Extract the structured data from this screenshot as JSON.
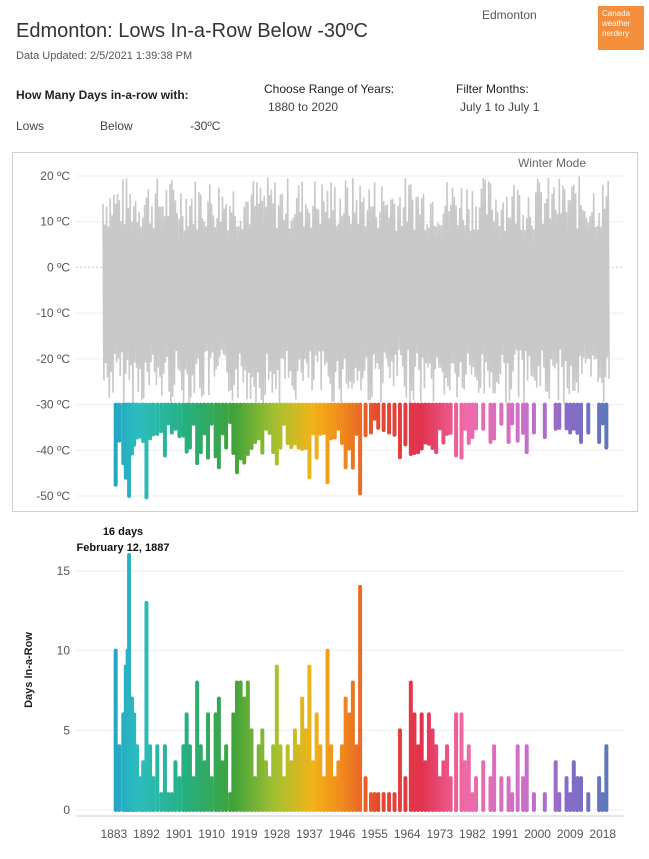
{
  "header": {
    "title": "Edmonton: Lows In-a-Row Below -30ºC",
    "updated": "Data Updated: 2/5/2021 1:39:38 PM",
    "city": "Edmonton",
    "logo_lines": [
      "Canada",
      "weather",
      "nerdery"
    ],
    "logo_color": "#f28e3c"
  },
  "filters": {
    "days_label": "How Many Days in-a-row with:",
    "measure": "Lows",
    "comparison": "Below",
    "threshold": "-30ºC",
    "range_label": "Choose Range of Years:",
    "range_value": "1880 to 2020",
    "months_label": "Filter Months:",
    "months_value": "July 1 to July 1"
  },
  "chart_data": [
    {
      "type": "line",
      "annotation": "Winter Mode",
      "y_ticks": [
        "20 ºC",
        "10 ºC",
        "0 ºC",
        "-10 ºC",
        "-20 ºC",
        "-30 ºC",
        "-40 ºC",
        "-50 ºC"
      ],
      "ylim": [
        -50,
        20
      ],
      "xlim": [
        1880,
        2020
      ],
      "threshold": -30,
      "grey_color": "#c8c8c8"
    },
    {
      "type": "bar",
      "ylabel": "Days In-a-Row",
      "y_ticks": [
        "0",
        "5",
        "10",
        "15"
      ],
      "ylim": [
        0,
        16
      ],
      "x_ticks": [
        "1883",
        "1892",
        "1901",
        "1910",
        "1919",
        "1928",
        "1937",
        "1946",
        "1955",
        "1964",
        "1973",
        "1982",
        "1991",
        "2000",
        "2009",
        "2018"
      ],
      "callout": {
        "value": "16 days",
        "date": "February 12, 1887"
      },
      "spells": [
        {
          "x": 1883.5,
          "v": 10
        },
        {
          "x": 1884.5,
          "v": 4
        },
        {
          "x": 1885.6,
          "v": 6
        },
        {
          "x": 1886.3,
          "v": 9
        },
        {
          "x": 1886.8,
          "v": 10
        },
        {
          "x": 1887.2,
          "v": 16
        },
        {
          "x": 1888.0,
          "v": 7
        },
        {
          "x": 1888.6,
          "v": 6
        },
        {
          "x": 1889.4,
          "v": 4
        },
        {
          "x": 1890.4,
          "v": 2
        },
        {
          "x": 1891.1,
          "v": 3
        },
        {
          "x": 1892.0,
          "v": 13
        },
        {
          "x": 1893.0,
          "v": 4
        },
        {
          "x": 1893.9,
          "v": 2
        },
        {
          "x": 1895.0,
          "v": 4
        },
        {
          "x": 1896.1,
          "v": 1
        },
        {
          "x": 1897.1,
          "v": 4
        },
        {
          "x": 1898.0,
          "v": 1
        },
        {
          "x": 1899.0,
          "v": 1
        },
        {
          "x": 1900.0,
          "v": 3
        },
        {
          "x": 1901.1,
          "v": 2
        },
        {
          "x": 1902.2,
          "v": 4
        },
        {
          "x": 1903.1,
          "v": 6
        },
        {
          "x": 1904.0,
          "v": 4
        },
        {
          "x": 1905.0,
          "v": 2
        },
        {
          "x": 1906.0,
          "v": 8
        },
        {
          "x": 1907.0,
          "v": 4
        },
        {
          "x": 1908.0,
          "v": 3
        },
        {
          "x": 1909.0,
          "v": 6
        },
        {
          "x": 1910.0,
          "v": 2
        },
        {
          "x": 1911.1,
          "v": 6
        },
        {
          "x": 1912.0,
          "v": 7
        },
        {
          "x": 1913.0,
          "v": 3
        },
        {
          "x": 1914.0,
          "v": 4
        },
        {
          "x": 1915.1,
          "v": 1
        },
        {
          "x": 1916.0,
          "v": 6
        },
        {
          "x": 1917.0,
          "v": 8
        },
        {
          "x": 1918.0,
          "v": 8
        },
        {
          "x": 1919.0,
          "v": 7
        },
        {
          "x": 1920.0,
          "v": 8
        },
        {
          "x": 1921.0,
          "v": 5
        },
        {
          "x": 1922.0,
          "v": 2
        },
        {
          "x": 1923.0,
          "v": 4
        },
        {
          "x": 1924.0,
          "v": 5
        },
        {
          "x": 1925.0,
          "v": 3
        },
        {
          "x": 1926.0,
          "v": 2
        },
        {
          "x": 1927.0,
          "v": 4
        },
        {
          "x": 1928.0,
          "v": 9
        },
        {
          "x": 1929.0,
          "v": 4
        },
        {
          "x": 1930.0,
          "v": 2
        },
        {
          "x": 1931.0,
          "v": 4
        },
        {
          "x": 1932.0,
          "v": 3
        },
        {
          "x": 1933.0,
          "v": 5
        },
        {
          "x": 1934.0,
          "v": 4
        },
        {
          "x": 1935.0,
          "v": 7
        },
        {
          "x": 1936.0,
          "v": 5
        },
        {
          "x": 1937.0,
          "v": 9
        },
        {
          "x": 1938.0,
          "v": 3
        },
        {
          "x": 1939.0,
          "v": 6
        },
        {
          "x": 1940.0,
          "v": 4
        },
        {
          "x": 1941.0,
          "v": 2
        },
        {
          "x": 1942.0,
          "v": 10
        },
        {
          "x": 1943.0,
          "v": 4
        },
        {
          "x": 1944.0,
          "v": 2
        },
        {
          "x": 1945.0,
          "v": 3
        },
        {
          "x": 1946.0,
          "v": 4
        },
        {
          "x": 1947.0,
          "v": 7
        },
        {
          "x": 1948.0,
          "v": 6
        },
        {
          "x": 1949.0,
          "v": 8
        },
        {
          "x": 1950.0,
          "v": 4
        },
        {
          "x": 1951.0,
          "v": 14
        },
        {
          "x": 1952.5,
          "v": 2
        },
        {
          "x": 1954.0,
          "v": 1
        },
        {
          "x": 1955.0,
          "v": 1
        },
        {
          "x": 1956.0,
          "v": 1
        },
        {
          "x": 1957.5,
          "v": 1
        },
        {
          "x": 1959.0,
          "v": 1
        },
        {
          "x": 1960.5,
          "v": 1
        },
        {
          "x": 1962.0,
          "v": 5
        },
        {
          "x": 1963.5,
          "v": 2
        },
        {
          "x": 1965.0,
          "v": 8
        },
        {
          "x": 1966.0,
          "v": 6
        },
        {
          "x": 1967.0,
          "v": 4
        },
        {
          "x": 1968.0,
          "v": 6
        },
        {
          "x": 1969.0,
          "v": 3
        },
        {
          "x": 1970.0,
          "v": 6
        },
        {
          "x": 1971.0,
          "v": 5
        },
        {
          "x": 1972.0,
          "v": 4
        },
        {
          "x": 1973.0,
          "v": 2
        },
        {
          "x": 1974.0,
          "v": 3
        },
        {
          "x": 1975.0,
          "v": 4
        },
        {
          "x": 1976.0,
          "v": 2
        },
        {
          "x": 1977.5,
          "v": 6
        },
        {
          "x": 1979.0,
          "v": 6
        },
        {
          "x": 1980.0,
          "v": 3
        },
        {
          "x": 1981.0,
          "v": 4
        },
        {
          "x": 1982.0,
          "v": 1
        },
        {
          "x": 1983.0,
          "v": 2
        },
        {
          "x": 1985.0,
          "v": 3
        },
        {
          "x": 1987.0,
          "v": 2
        },
        {
          "x": 1988.0,
          "v": 4
        },
        {
          "x": 1990.0,
          "v": 2
        },
        {
          "x": 1992.0,
          "v": 2
        },
        {
          "x": 1993.0,
          "v": 1
        },
        {
          "x": 1994.5,
          "v": 4
        },
        {
          "x": 1996.0,
          "v": 2
        },
        {
          "x": 1997.0,
          "v": 4
        },
        {
          "x": 1999.0,
          "v": 1
        },
        {
          "x": 2002.0,
          "v": 1
        },
        {
          "x": 2005.0,
          "v": 3
        },
        {
          "x": 2006.0,
          "v": 1
        },
        {
          "x": 2008.0,
          "v": 2
        },
        {
          "x": 2009.0,
          "v": 1
        },
        {
          "x": 2010.0,
          "v": 3
        },
        {
          "x": 2011.0,
          "v": 2
        },
        {
          "x": 2012.0,
          "v": 2
        },
        {
          "x": 2014.0,
          "v": 1
        },
        {
          "x": 2017.0,
          "v": 2
        },
        {
          "x": 2018.0,
          "v": 1
        },
        {
          "x": 2019.0,
          "v": 4
        }
      ]
    }
  ]
}
